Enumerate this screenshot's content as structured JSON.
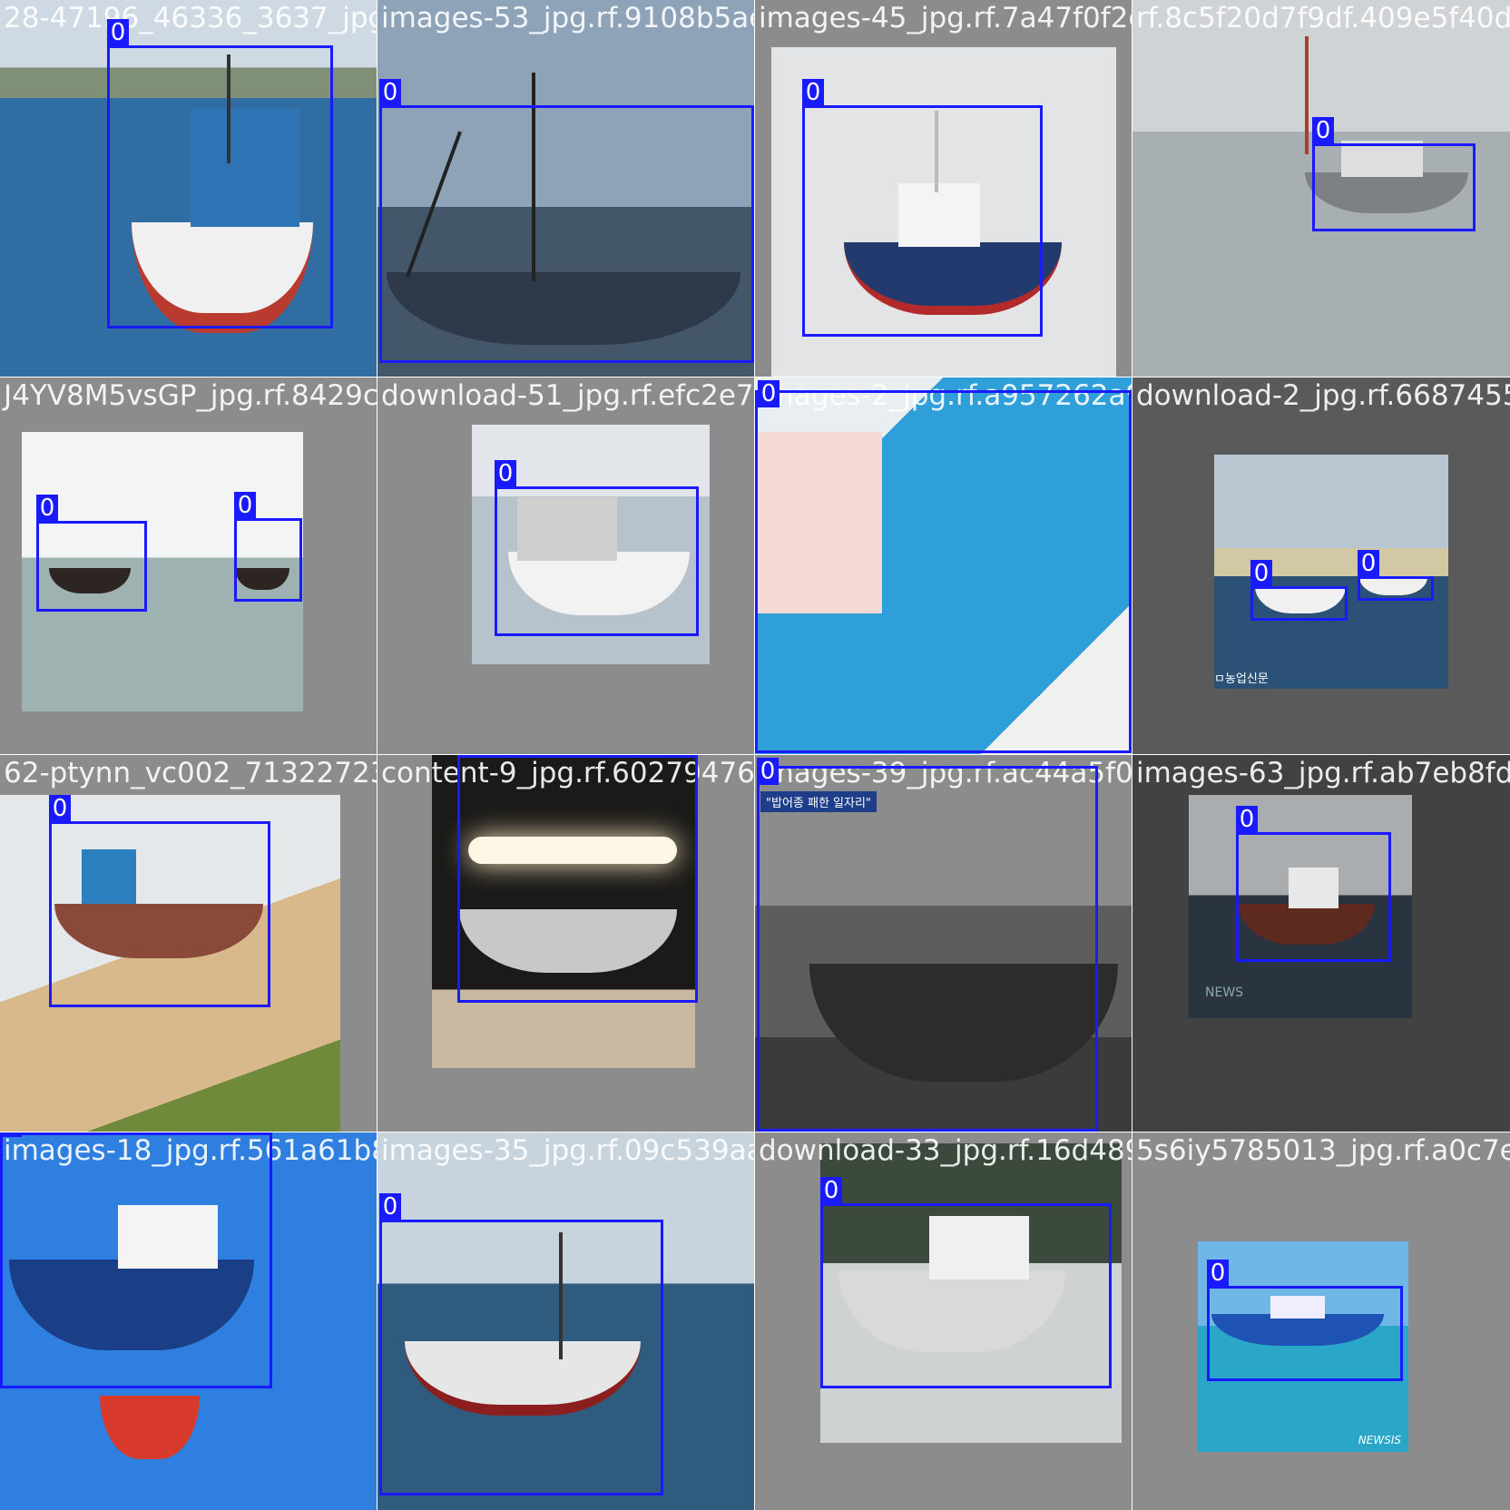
{
  "mosaic": {
    "box_color": "#1a1aff",
    "tiles": [
      {
        "filename": "28-47196_46336_3637_jpg.rf.",
        "labels": [
          "0"
        ]
      },
      {
        "filename": "images-53_jpg.rf.9108b5ae8241f3023d05fa55",
        "labels": [
          "0"
        ]
      },
      {
        "filename": "images-45_jpg.rf.7a47f0f2e4220ae3456e006",
        "labels": [
          "0"
        ]
      },
      {
        "filename": "rf.8c5f20d7f9df.409e5f40d",
        "labels": [
          "0"
        ]
      },
      {
        "filename": "J4YV8M5vsGP_jpg.rf.8429c",
        "labels": [
          "0",
          "0"
        ]
      },
      {
        "filename": "download-51_jpg.rf.efc2e75e",
        "labels": [
          "0"
        ]
      },
      {
        "filename": "images-2_jpg.rf.a957262a9",
        "labels": [
          "0"
        ]
      },
      {
        "filename": "download-2_jpg.rf.6687455b",
        "labels": [
          "0",
          "0"
        ]
      },
      {
        "filename": "62-ptynn_vc002_71322723_i",
        "labels": [
          "0"
        ]
      },
      {
        "filename": "content-9_jpg.rf.602794761",
        "labels": [
          "0"
        ]
      },
      {
        "filename": "images-39_jpg.rf.ac44a5f073",
        "labels": [
          "0"
        ]
      },
      {
        "filename": "images-63_jpg.rf.ab7eb8fd93",
        "labels": [
          "0"
        ]
      },
      {
        "filename": "images-18_jpg.rf.561a61b805",
        "labels": [
          "0"
        ]
      },
      {
        "filename": "images-35_jpg.rf.09c539aab4",
        "labels": [
          "0"
        ]
      },
      {
        "filename": "download-33_jpg.rf.16d48956",
        "labels": [
          "0"
        ]
      },
      {
        "filename": "5s6iy5785013_jpg.rf.a0c7e54",
        "labels": [
          "0"
        ]
      }
    ]
  },
  "watermarks": {
    "tile8": "ㅁ농업신문",
    "tile11": "NEWS",
    "tile16": "NEWSIS",
    "tile11_banner": "\"밥어종 패한 일자리\""
  }
}
